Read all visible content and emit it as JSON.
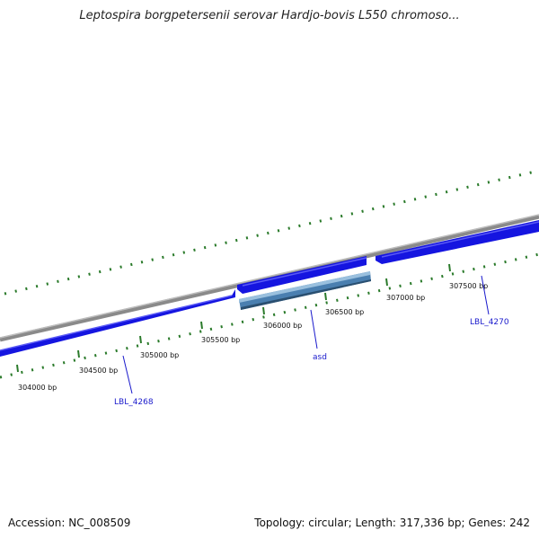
{
  "title": "Leptospira borgpetersenii serovar Hardjo-bovis L550 chromoso...",
  "footer": {
    "accession": "Accession: NC_008509",
    "topology": "Topology: circular; Length: 317,336 bp; Genes: 242"
  },
  "colors": {
    "backbone": "#8a8a8a",
    "gene_forward": "#1515e0",
    "gene_highlight": "#4a7fb0",
    "ticks": "#2a7a2a",
    "label": "#1a1acc"
  },
  "ticks": [
    {
      "label": "304000 bp"
    },
    {
      "label": "304500 bp"
    },
    {
      "label": "305000 bp"
    },
    {
      "label": "305500 bp"
    },
    {
      "label": "306000 bp"
    },
    {
      "label": "306500 bp"
    },
    {
      "label": "307000 bp"
    },
    {
      "label": "307500 bp"
    }
  ],
  "genes": [
    {
      "name": "LBL_4268"
    },
    {
      "name": "asd"
    },
    {
      "name": "LBL_4270"
    }
  ]
}
